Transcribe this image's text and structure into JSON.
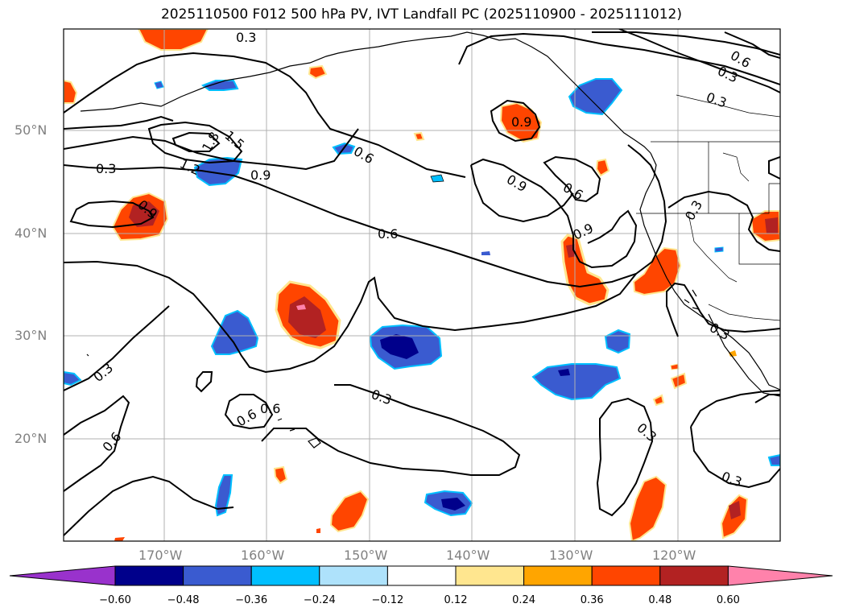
{
  "title": "2025110500 F012 500 hPa PV, IVT Landfall PC (2025110900 - 2025111012)",
  "lat_labels": [
    "50°N",
    "40°N",
    "30°N",
    "20°N"
  ],
  "lon_labels": [
    "170°W",
    "160°W",
    "150°W",
    "140°W",
    "130°W",
    "120°W"
  ],
  "colorbar": {
    "ticks": [
      "−0.60",
      "−0.48",
      "−0.36",
      "−0.24",
      "−0.12",
      "0.12",
      "0.24",
      "0.36",
      "0.48",
      "0.60"
    ],
    "colors": [
      "#9932cc",
      "#00008b",
      "#3a5bd0",
      "#00bfff",
      "#aee2fb",
      "#ffffff",
      "#ffe68f",
      "#ffa500",
      "#ff4500",
      "#b22222",
      "#ff82ab"
    ]
  },
  "contour_labels": [
    "0.3",
    "0.6",
    "0.3",
    "0.3",
    "0.9",
    "1.5",
    "1.8",
    "1.2",
    "0.9",
    "0.6",
    "0.3",
    "0.9",
    "0.6",
    "0.6",
    "0.9",
    "0.9",
    "0.3",
    "0.6",
    "0.3",
    "0.6",
    "0.6",
    "0.3",
    "0.3",
    "0.3",
    "0.3"
  ]
}
